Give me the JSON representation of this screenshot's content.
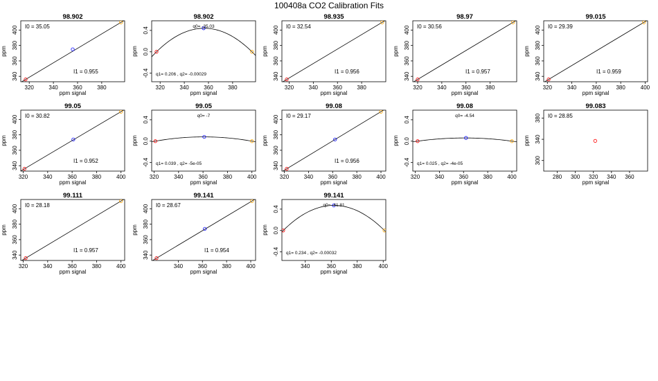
{
  "page": {
    "title": "100408a   CO2 Calibration Fits"
  },
  "colors": {
    "line": "#000000",
    "red": "#ff0000",
    "blue": "#0000ff",
    "orange": "#ffa500",
    "text": "#000000"
  },
  "chart_data": [
    {
      "type": "scatter",
      "title": "98.902",
      "xlabel": "ppm signal",
      "ylabel": "ppm",
      "xlim": [
        313,
        399
      ],
      "ylim": [
        333,
        412
      ],
      "xticks": [
        320,
        340,
        360,
        380
      ],
      "yticks": [
        340,
        360,
        380,
        400
      ],
      "points": [
        {
          "x": 317,
          "y": 336,
          "color": "red"
        },
        {
          "x": 356,
          "y": 375,
          "color": "blue"
        },
        {
          "x": 396,
          "y": 410,
          "color": "orange"
        }
      ],
      "fit": "line",
      "labels": {
        "i0": "I0 =  35.05",
        "i1": "I1 =  0.955"
      }
    },
    {
      "type": "scatter",
      "title": "98.902",
      "xlabel": "ppm signal",
      "ylabel": "ppm",
      "xlim": [
        313,
        399
      ],
      "ylim": [
        -0.56,
        0.58
      ],
      "xticks": [
        320,
        340,
        360,
        380
      ],
      "yticks": [
        -0.4,
        0.0,
        0.4
      ],
      "ytick_labels": [
        "-0.4",
        "0.0",
        "0.4"
      ],
      "points": [
        {
          "x": 317,
          "y": 0.0,
          "color": "red"
        },
        {
          "x": 356,
          "y": 0.44,
          "color": "blue"
        },
        {
          "x": 396,
          "y": 0.0,
          "color": "orange"
        }
      ],
      "fit": "parabola",
      "curve": {
        "a": 317,
        "b": 396,
        "h": 0.44
      },
      "curve_domain": [
        313,
        399
      ],
      "labels": {
        "q0": "q0=  -35.03",
        "q1": "q1= 0.206 ,  q2=  -0.00029"
      }
    },
    {
      "type": "scatter",
      "title": "98.935",
      "xlabel": "ppm signal",
      "ylabel": "ppm",
      "xlim": [
        314,
        400
      ],
      "ylim": [
        333,
        412
      ],
      "xticks": [
        320,
        340,
        360,
        380
      ],
      "yticks": [
        340,
        360,
        380,
        400
      ],
      "points": [
        {
          "x": 318,
          "y": 336,
          "color": "red"
        },
        {
          "x": 397,
          "y": 410,
          "color": "orange"
        }
      ],
      "fit": "line",
      "labels": {
        "i0": "I0 =  32.54",
        "i1": "I1 =  0.956"
      }
    },
    {
      "type": "scatter",
      "title": "98.97",
      "xlabel": "ppm signal",
      "ylabel": "ppm",
      "xlim": [
        316,
        402
      ],
      "ylim": [
        333,
        412
      ],
      "xticks": [
        320,
        340,
        360,
        380
      ],
      "yticks": [
        340,
        360,
        380,
        400
      ],
      "points": [
        {
          "x": 320,
          "y": 336,
          "color": "red"
        },
        {
          "x": 399,
          "y": 410,
          "color": "orange"
        }
      ],
      "fit": "line",
      "labels": {
        "i0": "I0 =  30.56",
        "i1": "I1 =  0.957"
      }
    },
    {
      "type": "scatter",
      "title": "99.015",
      "xlabel": "ppm signal",
      "ylabel": "ppm",
      "xlim": [
        317,
        402
      ],
      "ylim": [
        333,
        412
      ],
      "xticks": [
        320,
        340,
        360,
        380,
        400
      ],
      "yticks": [
        340,
        360,
        380,
        400
      ],
      "points": [
        {
          "x": 321,
          "y": 336,
          "color": "red"
        },
        {
          "x": 399,
          "y": 410,
          "color": "orange"
        }
      ],
      "fit": "line",
      "labels": {
        "i0": "I0 =  29.39",
        "i1": "I1 =  0.959"
      }
    },
    {
      "type": "scatter",
      "title": "99.05",
      "xlabel": "ppm signal",
      "ylabel": "ppm",
      "xlim": [
        318,
        403
      ],
      "ylim": [
        333,
        412
      ],
      "xticks": [
        320,
        340,
        360,
        380,
        400
      ],
      "yticks": [
        340,
        360,
        380,
        400
      ],
      "points": [
        {
          "x": 321,
          "y": 336,
          "color": "red"
        },
        {
          "x": 361,
          "y": 374,
          "color": "blue"
        },
        {
          "x": 400,
          "y": 410,
          "color": "orange"
        }
      ],
      "fit": "line",
      "labels": {
        "i0": "I0 =  30.82",
        "i1": "I1 =  0.952"
      }
    },
    {
      "type": "scatter",
      "title": "99.05",
      "xlabel": "ppm signal",
      "ylabel": "ppm",
      "xlim": [
        318,
        403
      ],
      "ylim": [
        -0.56,
        0.58
      ],
      "xticks": [
        320,
        340,
        360,
        380,
        400
      ],
      "yticks": [
        -0.4,
        0.0,
        0.4
      ],
      "ytick_labels": [
        "-0.4",
        "0.0",
        "0.4"
      ],
      "points": [
        {
          "x": 321,
          "y": 0.0,
          "color": "red"
        },
        {
          "x": 361,
          "y": 0.08,
          "color": "blue"
        },
        {
          "x": 400,
          "y": 0.0,
          "color": "orange"
        }
      ],
      "fit": "parabola",
      "curve": {
        "a": 321,
        "b": 400,
        "h": 0.08
      },
      "curve_domain": [
        318,
        403
      ],
      "labels": {
        "q0": "q0=  -7",
        "q1": "q1= 0.039 ,  q2=  -5e-05"
      }
    },
    {
      "type": "scatter",
      "title": "99.08",
      "xlabel": "ppm signal",
      "ylabel": "ppm",
      "xlim": [
        318,
        404
      ],
      "ylim": [
        333,
        412
      ],
      "xticks": [
        320,
        340,
        360,
        380,
        400
      ],
      "yticks": [
        340,
        360,
        380,
        400
      ],
      "points": [
        {
          "x": 322,
          "y": 336,
          "color": "red"
        },
        {
          "x": 362,
          "y": 374,
          "color": "blue"
        },
        {
          "x": 400,
          "y": 410,
          "color": "orange"
        }
      ],
      "fit": "line",
      "labels": {
        "i0": "I0 =  29.17",
        "i1": "I1 =  0.956"
      }
    },
    {
      "type": "scatter",
      "title": "99.08",
      "xlabel": "ppm signal",
      "ylabel": "ppm",
      "xlim": [
        318,
        404
      ],
      "ylim": [
        -0.56,
        0.58
      ],
      "xticks": [
        320,
        340,
        360,
        380,
        400
      ],
      "yticks": [
        -0.4,
        0.0,
        0.4
      ],
      "ytick_labels": [
        "-0.4",
        "0.0",
        "0.4"
      ],
      "points": [
        {
          "x": 322,
          "y": 0.0,
          "color": "red"
        },
        {
          "x": 362,
          "y": 0.06,
          "color": "blue"
        },
        {
          "x": 400,
          "y": 0.0,
          "color": "orange"
        }
      ],
      "fit": "parabola",
      "curve": {
        "a": 322,
        "b": 400,
        "h": 0.06
      },
      "curve_domain": [
        318,
        404
      ],
      "labels": {
        "q0": "q0=  -4.54",
        "q1": "q1= 0.025 ,  q2=  -4e-05"
      }
    },
    {
      "type": "scatter",
      "title": "99.083",
      "xlabel": "ppm signal",
      "ylabel": "ppm",
      "xlim": [
        265,
        380
      ],
      "ylim": [
        280,
        395
      ],
      "xticks": [
        280,
        300,
        320,
        340,
        360
      ],
      "yticks": [
        300,
        340,
        380
      ],
      "points": [
        {
          "x": 322,
          "y": 337,
          "color": "red"
        }
      ],
      "fit": "none",
      "labels": {
        "i0": "I0 =  28.85"
      }
    },
    {
      "type": "scatter",
      "title": "99.111",
      "xlabel": "ppm signal",
      "ylabel": "ppm",
      "xlim": [
        318,
        403
      ],
      "ylim": [
        333,
        412
      ],
      "xticks": [
        320,
        340,
        360,
        380,
        400
      ],
      "yticks": [
        340,
        360,
        380,
        400
      ],
      "points": [
        {
          "x": 322,
          "y": 336,
          "color": "red"
        },
        {
          "x": 400,
          "y": 410,
          "color": "orange"
        }
      ],
      "fit": "line",
      "labels": {
        "i0": "I0 =  28.18",
        "i1": "I1 =  0.957"
      }
    },
    {
      "type": "scatter",
      "title": "99.141",
      "xlabel": "ppm signal",
      "ylabel": "ppm",
      "xlim": [
        318,
        404
      ],
      "ylim": [
        333,
        412
      ],
      "xticks": [
        340,
        360,
        380,
        400
      ],
      "yticks": [
        340,
        360,
        380,
        400
      ],
      "points": [
        {
          "x": 322,
          "y": 336,
          "color": "red"
        },
        {
          "x": 362,
          "y": 374,
          "color": "blue"
        },
        {
          "x": 401,
          "y": 410,
          "color": "orange"
        }
      ],
      "fit": "line",
      "labels": {
        "i0": "I0 =  28.67",
        "i1": "I1 =  0.954"
      }
    },
    {
      "type": "scatter",
      "title": "99.141",
      "xlabel": "ppm signal",
      "ylabel": "ppm",
      "xlim": [
        322,
        402
      ],
      "ylim": [
        -0.56,
        0.58
      ],
      "xticks": [
        340,
        360,
        380,
        400
      ],
      "yticks": [
        -0.4,
        0.0,
        0.4
      ],
      "ytick_labels": [
        "-0.4",
        "0.0",
        "0.4"
      ],
      "points": [
        {
          "x": 323,
          "y": 0.0,
          "color": "red"
        },
        {
          "x": 362,
          "y": 0.47,
          "color": "blue"
        },
        {
          "x": 401,
          "y": 0.0,
          "color": "orange"
        }
      ],
      "fit": "parabola",
      "curve": {
        "a": 323,
        "b": 401,
        "h": 0.47
      },
      "curve_domain": [
        318,
        404
      ],
      "labels": {
        "q0": "q0=  -41.81",
        "q1": "q1= 0.234 ,  q2=  -0.00032"
      }
    }
  ]
}
